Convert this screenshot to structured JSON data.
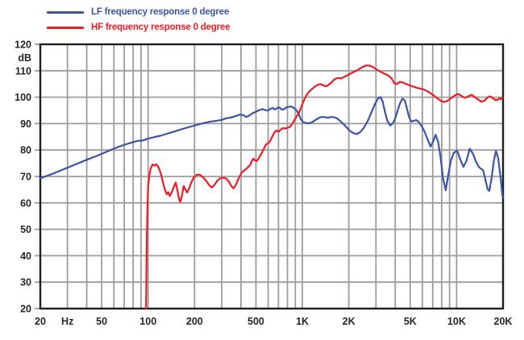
{
  "legend": {
    "items": [
      {
        "id": "lf",
        "label": "LF frequency response 0 degree",
        "color": "#3b54a5"
      },
      {
        "id": "hf",
        "label": "HF frequency response 0 degree",
        "color": "#ed1c24"
      }
    ]
  },
  "chart_data": {
    "type": "line",
    "title": "",
    "xlabel": "Hz",
    "ylabel": "dB",
    "grid": true,
    "legend_position": "top-left",
    "colors": {
      "grid": "#9c9c9e",
      "border": "#1f1f1f",
      "tick_text": "#262626"
    },
    "x_axis": {
      "scale": "log",
      "min": 20,
      "max": 20000,
      "ticks": [
        {
          "value": 20,
          "label": "20"
        },
        {
          "value": 30,
          "label": "Hz"
        },
        {
          "value": 50,
          "label": "50"
        },
        {
          "value": 100,
          "label": "100"
        },
        {
          "value": 200,
          "label": "200"
        },
        {
          "value": 500,
          "label": "500"
        },
        {
          "value": 1000,
          "label": "1K"
        },
        {
          "value": 2000,
          "label": "2K"
        },
        {
          "value": 5000,
          "label": "5K"
        },
        {
          "value": 10000,
          "label": "10K"
        },
        {
          "value": 20000,
          "label": "20K"
        }
      ]
    },
    "y_axis": {
      "scale": "linear",
      "min": 20,
      "max": 120,
      "grid_step": 10,
      "ticks": [
        {
          "value": 120,
          "label": "120"
        },
        {
          "value": 115,
          "label": "dB"
        },
        {
          "value": 110,
          "label": "110"
        },
        {
          "value": 100,
          "label": "100"
        },
        {
          "value": 90,
          "label": "90"
        },
        {
          "value": 80,
          "label": "80"
        },
        {
          "value": 70,
          "label": "70"
        },
        {
          "value": 60,
          "label": "60"
        },
        {
          "value": 50,
          "label": "50"
        },
        {
          "value": 40,
          "label": "40"
        },
        {
          "value": 30,
          "label": "30"
        },
        {
          "value": 20,
          "label": "20"
        }
      ]
    },
    "series": [
      {
        "name": "LF frequency response 0 degree",
        "color": "#3b54a5",
        "points": [
          [
            20,
            69.3
          ],
          [
            24,
            71
          ],
          [
            28,
            72.6
          ],
          [
            33,
            74.3
          ],
          [
            40,
            76.3
          ],
          [
            47,
            77.9
          ],
          [
            55,
            79.6
          ],
          [
            63,
            81
          ],
          [
            72,
            82.2
          ],
          [
            80,
            83
          ],
          [
            85,
            83.4
          ],
          [
            92,
            83.6
          ],
          [
            100,
            84.3
          ],
          [
            110,
            84.9
          ],
          [
            120,
            85.4
          ],
          [
            135,
            86.3
          ],
          [
            150,
            87.1
          ],
          [
            170,
            88.1
          ],
          [
            190,
            88.9
          ],
          [
            210,
            89.6
          ],
          [
            230,
            90.2
          ],
          [
            255,
            90.8
          ],
          [
            280,
            91.1
          ],
          [
            300,
            91.4
          ],
          [
            320,
            92
          ],
          [
            345,
            92.3
          ],
          [
            370,
            92.9
          ],
          [
            395,
            93.4
          ],
          [
            415,
            93.2
          ],
          [
            432,
            92.5
          ],
          [
            455,
            93.1
          ],
          [
            475,
            93.9
          ],
          [
            500,
            94.5
          ],
          [
            525,
            95.1
          ],
          [
            550,
            95.5
          ],
          [
            575,
            95.1
          ],
          [
            600,
            94.9
          ],
          [
            620,
            95.6
          ],
          [
            645,
            95.9
          ],
          [
            665,
            95.3
          ],
          [
            690,
            95.9
          ],
          [
            710,
            96.1
          ],
          [
            730,
            95.4
          ],
          [
            755,
            95.3
          ],
          [
            780,
            96
          ],
          [
            810,
            96.3
          ],
          [
            845,
            96.5
          ],
          [
            880,
            95.9
          ],
          [
            915,
            95.1
          ],
          [
            945,
            93.6
          ],
          [
            975,
            91.8
          ],
          [
            1005,
            90.7
          ],
          [
            1040,
            90.3
          ],
          [
            1080,
            90.1
          ],
          [
            1125,
            90.2
          ],
          [
            1170,
            90.7
          ],
          [
            1225,
            91.5
          ],
          [
            1285,
            92.2
          ],
          [
            1345,
            92.6
          ],
          [
            1405,
            92.4
          ],
          [
            1465,
            92.2
          ],
          [
            1530,
            92.5
          ],
          [
            1595,
            92.4
          ],
          [
            1665,
            92.1
          ],
          [
            1745,
            91.2
          ],
          [
            1835,
            90
          ],
          [
            1935,
            88.6
          ],
          [
            2035,
            87.2
          ],
          [
            2140,
            86.4
          ],
          [
            2255,
            86
          ],
          [
            2375,
            86.8
          ],
          [
            2505,
            88.4
          ],
          [
            2655,
            91
          ],
          [
            2805,
            94.3
          ],
          [
            2955,
            97.4
          ],
          [
            3105,
            99.6
          ],
          [
            3205,
            100
          ],
          [
            3310,
            98.5
          ],
          [
            3425,
            94.6
          ],
          [
            3550,
            91.2
          ],
          [
            3705,
            89.3
          ],
          [
            3860,
            90
          ],
          [
            4010,
            92.2
          ],
          [
            4160,
            95.2
          ],
          [
            4310,
            97.9
          ],
          [
            4460,
            99.4
          ],
          [
            4610,
            98.8
          ],
          [
            4760,
            95.8
          ],
          [
            4915,
            92.5
          ],
          [
            5070,
            90.8
          ],
          [
            5270,
            91
          ],
          [
            5470,
            91.3
          ],
          [
            5670,
            90.7
          ],
          [
            5920,
            89.2
          ],
          [
            6170,
            87.2
          ],
          [
            6470,
            84.2
          ],
          [
            6780,
            81.3
          ],
          [
            7060,
            83.4
          ],
          [
            7300,
            85.8
          ],
          [
            7580,
            83.2
          ],
          [
            7860,
            77.5
          ],
          [
            8180,
            69
          ],
          [
            8500,
            64.8
          ],
          [
            8820,
            70.5
          ],
          [
            9180,
            76
          ],
          [
            9590,
            79
          ],
          [
            10090,
            79.7
          ],
          [
            10580,
            76.3
          ],
          [
            11080,
            73.6
          ],
          [
            11590,
            76
          ],
          [
            12170,
            80.5
          ],
          [
            12760,
            78.6
          ],
          [
            13350,
            75.6
          ],
          [
            13940,
            73.6
          ],
          [
            14470,
            72.8
          ],
          [
            14840,
            72.4
          ],
          [
            15340,
            69
          ],
          [
            15890,
            65.2
          ],
          [
            16290,
            64.5
          ],
          [
            16810,
            69
          ],
          [
            17390,
            75.5
          ],
          [
            17990,
            79.7
          ],
          [
            18590,
            77
          ],
          [
            19190,
            70.5
          ],
          [
            19590,
            65.5
          ],
          [
            19900,
            62
          ]
        ]
      },
      {
        "name": "HF frequency response 0 degree",
        "color": "#ed1c24",
        "points": [
          [
            97,
            20
          ],
          [
            97.5,
            33
          ],
          [
            98,
            46
          ],
          [
            99,
            58
          ],
          [
            100,
            66
          ],
          [
            102,
            70.6
          ],
          [
            104,
            73.2
          ],
          [
            107,
            74.5
          ],
          [
            110,
            74.1
          ],
          [
            113,
            74.6
          ],
          [
            117,
            73.4
          ],
          [
            121,
            71
          ],
          [
            125,
            67.6
          ],
          [
            129,
            64.6
          ],
          [
            132,
            63.3
          ],
          [
            135,
            64.1
          ],
          [
            138,
            62.6
          ],
          [
            142,
            63.9
          ],
          [
            147,
            66.1
          ],
          [
            151,
            67.7
          ],
          [
            155,
            64.6
          ],
          [
            159,
            61.2
          ],
          [
            162,
            60.4
          ],
          [
            166,
            63
          ],
          [
            170,
            66.4
          ],
          [
            174,
            65.2
          ],
          [
            179,
            63.9
          ],
          [
            184,
            65.4
          ],
          [
            191,
            67.8
          ],
          [
            198,
            69.7
          ],
          [
            207,
            70.6
          ],
          [
            216,
            70.7
          ],
          [
            226,
            69.8
          ],
          [
            238,
            68.3
          ],
          [
            249,
            66.7
          ],
          [
            259,
            65.8
          ],
          [
            269,
            66.8
          ],
          [
            281,
            68.4
          ],
          [
            293,
            69.3
          ],
          [
            306,
            69.5
          ],
          [
            319,
            69.3
          ],
          [
            333,
            68.1
          ],
          [
            347,
            66.3
          ],
          [
            358,
            65.5
          ],
          [
            369,
            66.6
          ],
          [
            381,
            68.5
          ],
          [
            395,
            70.4
          ],
          [
            409,
            71.8
          ],
          [
            425,
            72.5
          ],
          [
            443,
            73.4
          ],
          [
            459,
            74.4
          ],
          [
            471,
            76
          ],
          [
            481,
            76.7
          ],
          [
            493,
            76.1
          ],
          [
            506,
            75.8
          ],
          [
            521,
            76.8
          ],
          [
            541,
            78.5
          ],
          [
            561,
            80.3
          ],
          [
            581,
            82.1
          ],
          [
            601,
            82.6
          ],
          [
            621,
            83.6
          ],
          [
            641,
            85.3
          ],
          [
            661,
            86.8
          ],
          [
            681,
            87.4
          ],
          [
            701,
            86.9
          ],
          [
            721,
            87.6
          ],
          [
            746,
            88.3
          ],
          [
            771,
            88.1
          ],
          [
            801,
            88.4
          ],
          [
            831,
            88.8
          ],
          [
            861,
            89.9
          ],
          [
            891,
            91.5
          ],
          [
            921,
            92.8
          ],
          [
            951,
            94.1
          ],
          [
            981,
            96.1
          ],
          [
            1011,
            98.1
          ],
          [
            1041,
            99.7
          ],
          [
            1081,
            101.3
          ],
          [
            1121,
            102.4
          ],
          [
            1171,
            103.4
          ],
          [
            1221,
            104.2
          ],
          [
            1271,
            104.8
          ],
          [
            1321,
            104.9
          ],
          [
            1371,
            104.4
          ],
          [
            1421,
            104.1
          ],
          [
            1481,
            104.7
          ],
          [
            1541,
            105.5
          ],
          [
            1601,
            106.6
          ],
          [
            1661,
            107.1
          ],
          [
            1721,
            107.3
          ],
          [
            1781,
            107
          ],
          [
            1851,
            107.6
          ],
          [
            1951,
            108.2
          ],
          [
            2051,
            108.9
          ],
          [
            2151,
            109.5
          ],
          [
            2301,
            110.4
          ],
          [
            2451,
            111.4
          ],
          [
            2601,
            112
          ],
          [
            2751,
            111.9
          ],
          [
            2901,
            111.2
          ],
          [
            3051,
            110.3
          ],
          [
            3201,
            109.7
          ],
          [
            3401,
            108.9
          ],
          [
            3601,
            108.2
          ],
          [
            3801,
            107
          ],
          [
            3951,
            105.2
          ],
          [
            4101,
            105
          ],
          [
            4301,
            105.8
          ],
          [
            4501,
            105.5
          ],
          [
            4751,
            104.9
          ],
          [
            5001,
            104.4
          ],
          [
            5301,
            103.9
          ],
          [
            5601,
            103.4
          ],
          [
            6001,
            103.1
          ],
          [
            6401,
            102.4
          ],
          [
            6801,
            101.4
          ],
          [
            7201,
            100.4
          ],
          [
            7601,
            99.3
          ],
          [
            8001,
            98.4
          ],
          [
            8401,
            98.2
          ],
          [
            8801,
            98.8
          ],
          [
            9301,
            99.8
          ],
          [
            9801,
            100.8
          ],
          [
            10301,
            101.2
          ],
          [
            10801,
            100.4
          ],
          [
            11301,
            99.8
          ],
          [
            11901,
            100.3
          ],
          [
            12501,
            100.9
          ],
          [
            13101,
            100.1
          ],
          [
            13801,
            99.1
          ],
          [
            14501,
            98.3
          ],
          [
            15201,
            98.7
          ],
          [
            15901,
            99.9
          ],
          [
            16501,
            100.3
          ],
          [
            17201,
            99.6
          ],
          [
            17801,
            98.9
          ],
          [
            18401,
            99
          ],
          [
            19001,
            99.6
          ],
          [
            19401,
            99.2
          ],
          [
            19801,
            99.8
          ]
        ]
      }
    ]
  }
}
